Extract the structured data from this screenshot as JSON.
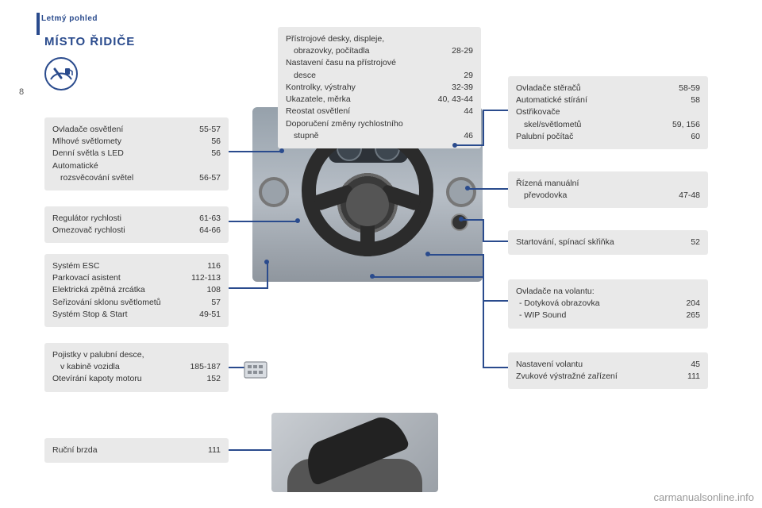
{
  "page": {
    "section_tab": "Letmý pohled",
    "number": "8",
    "title": "MÍSTO ŘIDIČE",
    "watermark": "carmanualsonline.info"
  },
  "colors": {
    "accent": "#2a4b8d",
    "box_bg": "#e9e9e9",
    "text": "#333333"
  },
  "top_box": {
    "rows": [
      {
        "label": "Přístrojové desky, displeje,",
        "page": ""
      },
      {
        "label_indent": "obrazovky, počítadla",
        "page": "28-29"
      },
      {
        "label": "Nastavení času na přístrojové",
        "page": ""
      },
      {
        "label_indent": "desce",
        "page": "29"
      },
      {
        "label": "Kontrolky, výstrahy",
        "page": "32-39"
      },
      {
        "label": "Ukazatele, měrka",
        "page": "40, 43-44"
      },
      {
        "label": "Reostat osvětlení",
        "page": "44"
      },
      {
        "label": "Doporučení změny rychlostního",
        "page": ""
      },
      {
        "label_indent": "stupně",
        "page": "46"
      }
    ]
  },
  "left_boxes": [
    {
      "id": "lights",
      "rows": [
        {
          "label": "Ovladače osvětlení",
          "page": "55-57"
        },
        {
          "label": "Mlhové světlomety",
          "page": "56"
        },
        {
          "label": "Denní světla s LED",
          "page": "56"
        },
        {
          "label": "Automatické",
          "page": ""
        },
        {
          "label_indent": "rozsvěcování světel",
          "page": "56-57"
        }
      ]
    },
    {
      "id": "cruise",
      "rows": [
        {
          "label": "Regulátor rychlosti",
          "page": "61-63"
        },
        {
          "label": "Omezovač rychlosti",
          "page": "64-66"
        }
      ]
    },
    {
      "id": "esc",
      "rows": [
        {
          "label": "Systém ESC",
          "page": "116"
        },
        {
          "label": "Parkovací asistent",
          "page": "112-113"
        },
        {
          "label": "Elektrická zpětná zrcátka",
          "page": "108"
        },
        {
          "label": "Seřizování sklonu světlometů",
          "page": "57"
        },
        {
          "label": "Systém Stop & Start",
          "page": "49-51"
        }
      ]
    },
    {
      "id": "fuses",
      "rows": [
        {
          "label": "Pojistky v palubní desce,",
          "page": ""
        },
        {
          "label_indent": "v kabině vozidla",
          "page": "185-187"
        },
        {
          "label": "Otevírání kapoty motoru",
          "page": "152"
        }
      ]
    },
    {
      "id": "handbrake",
      "rows": [
        {
          "label": "Ruční brzda",
          "page": "111"
        }
      ]
    }
  ],
  "right_boxes": [
    {
      "id": "wipers",
      "rows": [
        {
          "label": "Ovladače stěračů",
          "page": "58-59"
        },
        {
          "label": "Automatické stírání",
          "page": "58"
        },
        {
          "label": "Ostřikovače",
          "page": ""
        },
        {
          "label_indent": "skel/světlometů",
          "page": "59, 156"
        },
        {
          "label": "Palubní počítač",
          "page": "60"
        }
      ]
    },
    {
      "id": "gearbox",
      "rows": [
        {
          "label": "Řízená manuální",
          "page": ""
        },
        {
          "label_indent": "převodovka",
          "page": "47-48"
        }
      ]
    },
    {
      "id": "start",
      "rows": [
        {
          "label": "Startování, spínací skřiňka",
          "page": "52"
        }
      ]
    },
    {
      "id": "wheel_ctrl",
      "rows": [
        {
          "label": "Ovladače na volantu:",
          "page": ""
        },
        {
          "label_dash": "Dotyková obrazovka",
          "page": "204"
        },
        {
          "label_dash": "WIP Sound",
          "page": "265"
        }
      ]
    },
    {
      "id": "steering",
      "rows": [
        {
          "label": "Nastavení volantu",
          "page": "45"
        },
        {
          "label": "Zvukové výstražné zařízení",
          "page": "111"
        }
      ]
    }
  ]
}
